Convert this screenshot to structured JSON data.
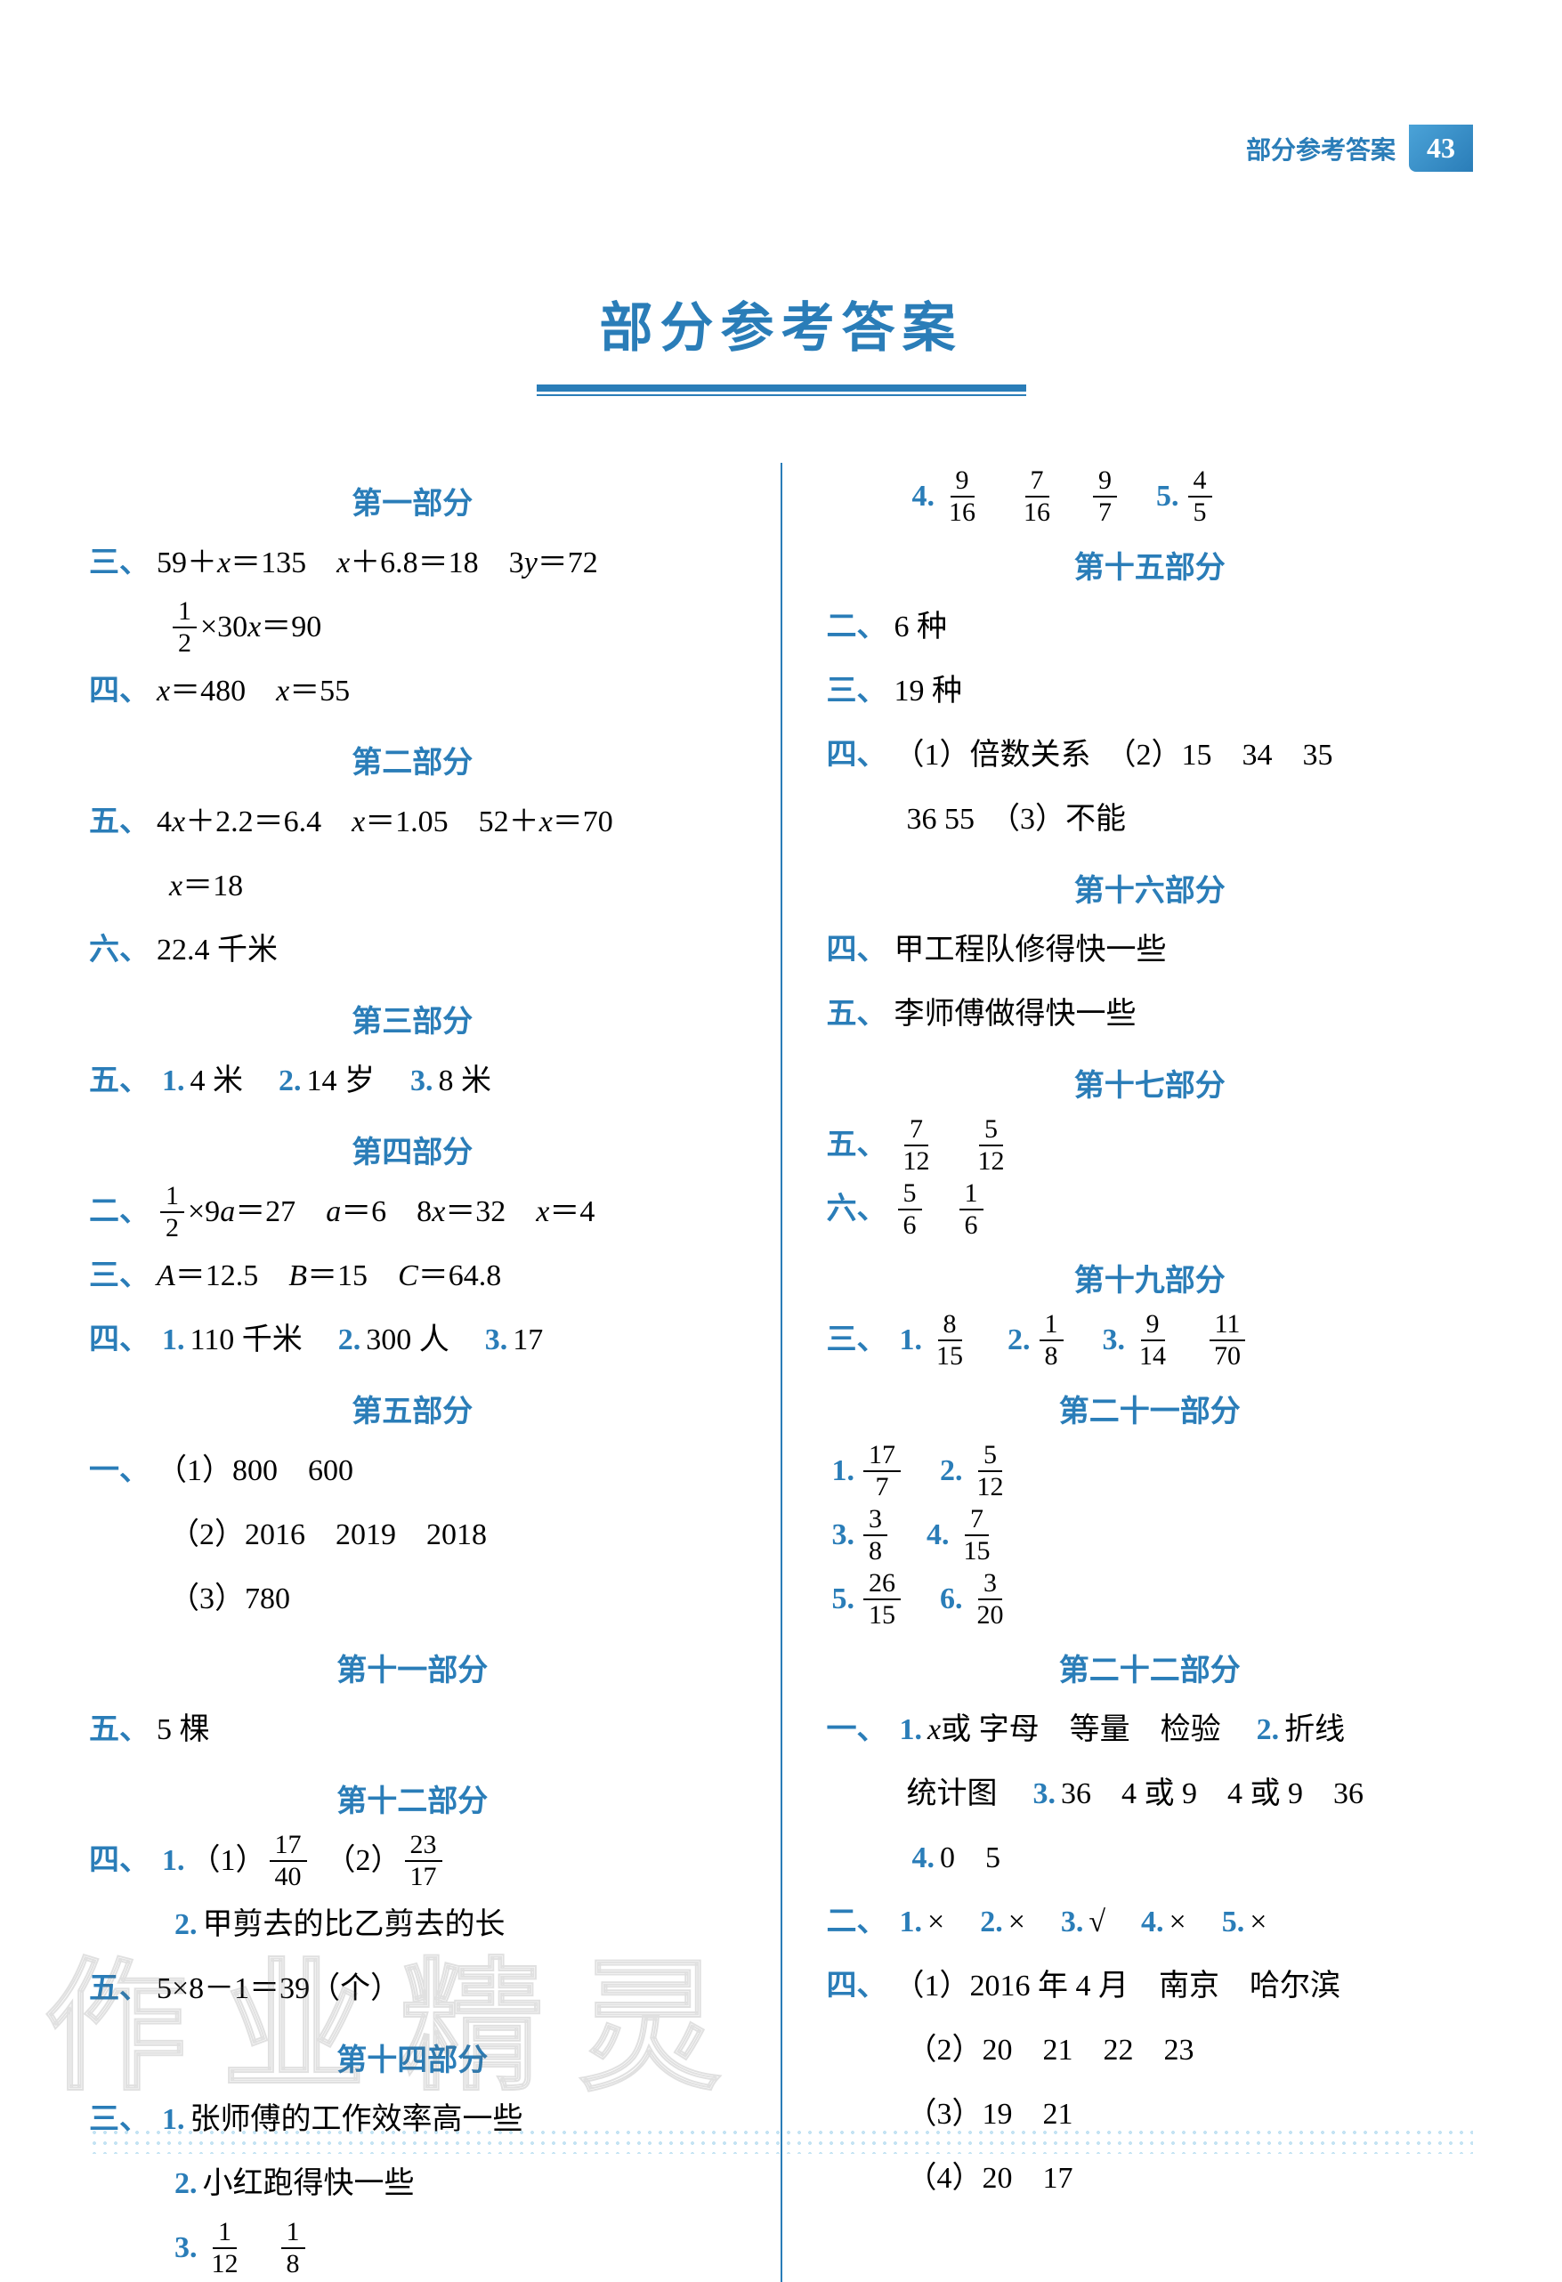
{
  "header": {
    "label": "部分参考答案",
    "page_number": "43"
  },
  "title": "部分参考答案",
  "colors": {
    "accent": "#2a7db8",
    "text": "#000000",
    "background": "#ffffff",
    "header_gradient_start": "#4ba3d8",
    "header_gradient_end": "#2a7db8"
  },
  "typography": {
    "title_fontsize": 60,
    "section_fontsize": 34,
    "body_fontsize": 34,
    "font_family": "SimSun"
  },
  "left_column": {
    "sections": [
      {
        "title": "第一部分",
        "lines": [
          {
            "qnum": "三、",
            "content": [
              {
                "type": "text",
                "value": "59＋"
              },
              {
                "type": "ital",
                "value": "x"
              },
              {
                "type": "text",
                "value": "＝135　"
              },
              {
                "type": "ital",
                "value": "x"
              },
              {
                "type": "text",
                "value": "＋6.8＝18　3"
              },
              {
                "type": "ital",
                "value": "y"
              },
              {
                "type": "text",
                "value": "＝72"
              }
            ]
          },
          {
            "indent": 1,
            "content": [
              {
                "type": "frac",
                "num": "1",
                "den": "2"
              },
              {
                "type": "text",
                "value": "×30"
              },
              {
                "type": "ital",
                "value": "x"
              },
              {
                "type": "text",
                "value": "＝90"
              }
            ]
          },
          {
            "qnum": "四、",
            "content": [
              {
                "type": "ital",
                "value": "x"
              },
              {
                "type": "text",
                "value": "＝480　"
              },
              {
                "type": "ital",
                "value": "x"
              },
              {
                "type": "text",
                "value": "＝55"
              }
            ]
          }
        ]
      },
      {
        "title": "第二部分",
        "lines": [
          {
            "qnum": "五、",
            "content": [
              {
                "type": "text",
                "value": "4"
              },
              {
                "type": "ital",
                "value": "x"
              },
              {
                "type": "text",
                "value": "＋2.2＝6.4　"
              },
              {
                "type": "ital",
                "value": "x"
              },
              {
                "type": "text",
                "value": "＝1.05　52＋"
              },
              {
                "type": "ital",
                "value": "x"
              },
              {
                "type": "text",
                "value": "＝70"
              }
            ]
          },
          {
            "indent": 1,
            "content": [
              {
                "type": "ital",
                "value": "x"
              },
              {
                "type": "text",
                "value": "＝18"
              }
            ]
          },
          {
            "qnum": "六、",
            "content": [
              {
                "type": "text",
                "value": "22.4 千米"
              }
            ]
          }
        ]
      },
      {
        "title": "第三部分",
        "lines": [
          {
            "qnum": "五、",
            "content": [
              {
                "type": "bnum",
                "value": "1."
              },
              {
                "type": "text",
                "value": "4 米　"
              },
              {
                "type": "bnum",
                "value": "2."
              },
              {
                "type": "text",
                "value": "14 岁　"
              },
              {
                "type": "bnum",
                "value": "3."
              },
              {
                "type": "text",
                "value": "8 米"
              }
            ]
          }
        ]
      },
      {
        "title": "第四部分",
        "lines": [
          {
            "qnum": "二、",
            "content": [
              {
                "type": "frac",
                "num": "1",
                "den": "2"
              },
              {
                "type": "text",
                "value": "×9"
              },
              {
                "type": "ital",
                "value": "a"
              },
              {
                "type": "text",
                "value": "＝27　"
              },
              {
                "type": "ital",
                "value": "a"
              },
              {
                "type": "text",
                "value": "＝6　8"
              },
              {
                "type": "ital",
                "value": "x"
              },
              {
                "type": "text",
                "value": "＝32　"
              },
              {
                "type": "ital",
                "value": "x"
              },
              {
                "type": "text",
                "value": "＝4"
              }
            ]
          },
          {
            "qnum": "三、",
            "content": [
              {
                "type": "ital",
                "value": "A"
              },
              {
                "type": "text",
                "value": "＝12.5　"
              },
              {
                "type": "ital",
                "value": "B"
              },
              {
                "type": "text",
                "value": "＝15　"
              },
              {
                "type": "ital",
                "value": "C"
              },
              {
                "type": "text",
                "value": "＝64.8"
              }
            ]
          },
          {
            "qnum": "四、",
            "content": [
              {
                "type": "bnum",
                "value": "1."
              },
              {
                "type": "text",
                "value": "110 千米　"
              },
              {
                "type": "bnum",
                "value": "2."
              },
              {
                "type": "text",
                "value": "300 人　"
              },
              {
                "type": "bnum",
                "value": "3."
              },
              {
                "type": "text",
                "value": "17"
              }
            ]
          }
        ]
      },
      {
        "title": "第五部分",
        "lines": [
          {
            "qnum": "一、",
            "content": [
              {
                "type": "text",
                "value": "（1）800　600"
              }
            ]
          },
          {
            "indent": 1,
            "content": [
              {
                "type": "text",
                "value": "（2）2016　2019　2018"
              }
            ]
          },
          {
            "indent": 1,
            "content": [
              {
                "type": "text",
                "value": "（3）780"
              }
            ]
          }
        ]
      },
      {
        "title": "第十一部分",
        "lines": [
          {
            "qnum": "五、",
            "content": [
              {
                "type": "text",
                "value": "5 棵"
              }
            ]
          }
        ]
      },
      {
        "title": "第十二部分",
        "lines": [
          {
            "qnum": "四、",
            "content": [
              {
                "type": "bnum",
                "value": "1."
              },
              {
                "type": "text",
                "value": "（1）"
              },
              {
                "type": "frac",
                "num": "17",
                "den": "40"
              },
              {
                "type": "text",
                "value": "　（2）"
              },
              {
                "type": "frac",
                "num": "23",
                "den": "17"
              }
            ]
          },
          {
            "indent": 1,
            "content": [
              {
                "type": "bnum",
                "value": "2."
              },
              {
                "type": "text",
                "value": "甲剪去的比乙剪去的长"
              }
            ]
          },
          {
            "qnum": "五、",
            "content": [
              {
                "type": "text",
                "value": "5×8－1＝39（个）"
              }
            ]
          }
        ]
      },
      {
        "title": "第十四部分",
        "lines": [
          {
            "qnum": "三、",
            "content": [
              {
                "type": "bnum",
                "value": "1."
              },
              {
                "type": "text",
                "value": "张师傅的工作效率高一些"
              }
            ]
          },
          {
            "indent": 1,
            "content": [
              {
                "type": "bnum",
                "value": "2."
              },
              {
                "type": "text",
                "value": "小红跑得快一些"
              }
            ]
          },
          {
            "indent": 1,
            "content": [
              {
                "type": "bnum",
                "value": "3."
              },
              {
                "type": "frac",
                "num": "1",
                "den": "12"
              },
              {
                "type": "text",
                "value": "　"
              },
              {
                "type": "frac",
                "num": "1",
                "den": "8"
              }
            ]
          }
        ]
      }
    ]
  },
  "right_column": {
    "pre_lines": [
      {
        "indent": 1,
        "content": [
          {
            "type": "bnum",
            "value": "4."
          },
          {
            "type": "frac",
            "num": "9",
            "den": "16"
          },
          {
            "type": "text",
            "value": "　"
          },
          {
            "type": "frac",
            "num": "7",
            "den": "16"
          },
          {
            "type": "text",
            "value": "　"
          },
          {
            "type": "frac",
            "num": "9",
            "den": "7"
          },
          {
            "type": "text",
            "value": "　"
          },
          {
            "type": "bnum",
            "value": "5."
          },
          {
            "type": "frac",
            "num": "4",
            "den": "5"
          }
        ]
      }
    ],
    "sections": [
      {
        "title": "第十五部分",
        "lines": [
          {
            "qnum": "二、",
            "content": [
              {
                "type": "text",
                "value": "6 种"
              }
            ]
          },
          {
            "qnum": "三、",
            "content": [
              {
                "type": "text",
                "value": "19 种"
              }
            ]
          },
          {
            "qnum": "四、",
            "content": [
              {
                "type": "text",
                "value": "（1）倍数关系　（2）15　34　35"
              }
            ]
          },
          {
            "indent": 1,
            "content": [
              {
                "type": "text",
                "value": "36  55　（3）不能"
              }
            ]
          }
        ]
      },
      {
        "title": "第十六部分",
        "lines": [
          {
            "qnum": "四、",
            "content": [
              {
                "type": "text",
                "value": "甲工程队修得快一些"
              }
            ]
          },
          {
            "qnum": "五、",
            "content": [
              {
                "type": "text",
                "value": "李师傅做得快一些"
              }
            ]
          }
        ]
      },
      {
        "title": "第十七部分",
        "lines": [
          {
            "qnum": "五、",
            "content": [
              {
                "type": "frac",
                "num": "7",
                "den": "12"
              },
              {
                "type": "text",
                "value": "　"
              },
              {
                "type": "frac",
                "num": "5",
                "den": "12"
              }
            ]
          },
          {
            "qnum": "六、",
            "content": [
              {
                "type": "frac",
                "num": "5",
                "den": "6"
              },
              {
                "type": "text",
                "value": "　"
              },
              {
                "type": "frac",
                "num": "1",
                "den": "6"
              }
            ]
          }
        ]
      },
      {
        "title": "第十九部分",
        "lines": [
          {
            "qnum": "三、",
            "content": [
              {
                "type": "bnum",
                "value": "1."
              },
              {
                "type": "frac",
                "num": "8",
                "den": "15"
              },
              {
                "type": "text",
                "value": "　"
              },
              {
                "type": "bnum",
                "value": "2."
              },
              {
                "type": "frac",
                "num": "1",
                "den": "8"
              },
              {
                "type": "text",
                "value": "　"
              },
              {
                "type": "bnum",
                "value": "3."
              },
              {
                "type": "frac",
                "num": "9",
                "den": "14"
              },
              {
                "type": "text",
                "value": "　"
              },
              {
                "type": "frac",
                "num": "11",
                "den": "70"
              }
            ]
          }
        ]
      },
      {
        "title": "第二十一部分",
        "lines": [
          {
            "content": [
              {
                "type": "bnum",
                "value": "1."
              },
              {
                "type": "frac",
                "num": "17",
                "den": "7"
              },
              {
                "type": "text",
                "value": "　"
              },
              {
                "type": "bnum",
                "value": "2."
              },
              {
                "type": "frac",
                "num": "5",
                "den": "12"
              }
            ]
          },
          {
            "content": [
              {
                "type": "bnum",
                "value": "3."
              },
              {
                "type": "frac",
                "num": "3",
                "den": "8"
              },
              {
                "type": "text",
                "value": "　"
              },
              {
                "type": "bnum",
                "value": "4."
              },
              {
                "type": "frac",
                "num": "7",
                "den": "15"
              }
            ]
          },
          {
            "content": [
              {
                "type": "bnum",
                "value": "5."
              },
              {
                "type": "frac",
                "num": "26",
                "den": "15"
              },
              {
                "type": "text",
                "value": "　"
              },
              {
                "type": "bnum",
                "value": "6."
              },
              {
                "type": "frac",
                "num": "3",
                "den": "20"
              }
            ]
          }
        ]
      },
      {
        "title": "第二十二部分",
        "lines": [
          {
            "qnum": "一、",
            "content": [
              {
                "type": "bnum",
                "value": "1."
              },
              {
                "type": "ital",
                "value": "x"
              },
              {
                "type": "text",
                "value": " 或 字母　等量　检验　"
              },
              {
                "type": "bnum",
                "value": "2."
              },
              {
                "type": "text",
                "value": "折线"
              }
            ]
          },
          {
            "indent": 1,
            "content": [
              {
                "type": "text",
                "value": "统计图　"
              },
              {
                "type": "bnum",
                "value": "3."
              },
              {
                "type": "text",
                "value": "36　4 或 9　4 或 9　36"
              }
            ]
          },
          {
            "indent": 1,
            "content": [
              {
                "type": "bnum",
                "value": "4."
              },
              {
                "type": "text",
                "value": "0　5"
              }
            ]
          },
          {
            "qnum": "二、",
            "content": [
              {
                "type": "bnum",
                "value": "1."
              },
              {
                "type": "text",
                "value": "×　"
              },
              {
                "type": "bnum",
                "value": "2."
              },
              {
                "type": "text",
                "value": "×　"
              },
              {
                "type": "bnum",
                "value": "3."
              },
              {
                "type": "text",
                "value": "√　"
              },
              {
                "type": "bnum",
                "value": "4."
              },
              {
                "type": "text",
                "value": "×　"
              },
              {
                "type": "bnum",
                "value": "5."
              },
              {
                "type": "text",
                "value": "×"
              }
            ]
          },
          {
            "qnum": "四、",
            "content": [
              {
                "type": "text",
                "value": "（1）2016 年 4 月　南京　哈尔滨"
              }
            ]
          },
          {
            "indent": 1,
            "content": [
              {
                "type": "text",
                "value": "（2）20　21　22　23"
              }
            ]
          },
          {
            "indent": 1,
            "content": [
              {
                "type": "text",
                "value": "（3）19　21"
              }
            ]
          },
          {
            "indent": 1,
            "content": [
              {
                "type": "text",
                "value": "（4）20　17"
              }
            ]
          }
        ]
      }
    ]
  },
  "watermark_text": "作业精灵"
}
